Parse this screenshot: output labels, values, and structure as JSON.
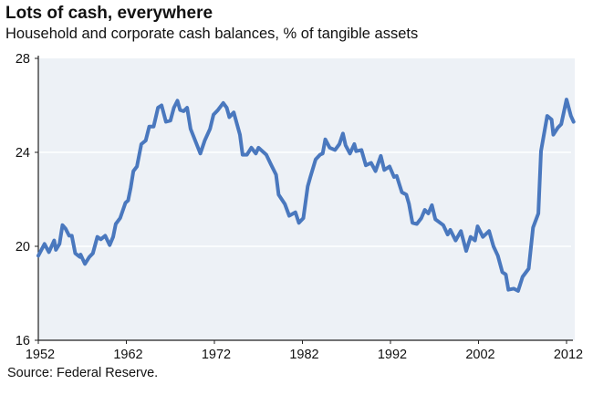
{
  "chart_data": {
    "type": "line",
    "title": "Lots of cash, everywhere",
    "subtitle": "Household and corporate cash balances, % of tangible assets",
    "source": "Source: Federal Reserve.",
    "xlabel": "",
    "ylabel": "",
    "xlim": [
      1952,
      2012.8
    ],
    "ylim": [
      16,
      28
    ],
    "x_ticks": [
      "1952",
      "1962",
      "1972",
      "1982",
      "1992",
      "2002",
      "2012"
    ],
    "y_ticks": [
      "16",
      "20",
      "24",
      "28"
    ],
    "grid": "horizontal",
    "line_color": "#4A78BE",
    "plot_bg": "#EDF1F6",
    "series": [
      {
        "name": "Cash balances",
        "x": [
          1952.0,
          1952.7,
          1953.2,
          1953.8,
          1954.0,
          1954.4,
          1954.75,
          1955.1,
          1955.5,
          1955.8,
          1956.2,
          1956.7,
          1956.8,
          1957.3,
          1957.8,
          1958.2,
          1958.7,
          1959.1,
          1959.6,
          1960.1,
          1960.5,
          1960.8,
          1961.3,
          1961.9,
          1962.2,
          1962.5,
          1962.8,
          1963.2,
          1963.7,
          1964.2,
          1964.6,
          1965.1,
          1965.6,
          1966.0,
          1966.5,
          1967.0,
          1967.4,
          1967.8,
          1968.1,
          1968.5,
          1968.9,
          1969.3,
          1970.4,
          1970.9,
          1971.5,
          1971.9,
          1972.4,
          1973.0,
          1973.4,
          1973.7,
          1974.2,
          1974.9,
          1975.2,
          1975.7,
          1976.2,
          1976.7,
          1977.0,
          1977.9,
          1978.4,
          1979.0,
          1979.3,
          1980.0,
          1980.5,
          1981.2,
          1981.6,
          1982.1,
          1982.6,
          1982.9,
          1983.5,
          1984.0,
          1984.3,
          1984.6,
          1985.1,
          1985.7,
          1986.2,
          1986.6,
          1986.9,
          1987.4,
          1987.9,
          1988.1,
          1988.7,
          1989.2,
          1989.8,
          1990.3,
          1990.9,
          1991.3,
          1991.9,
          1992.4,
          1992.7,
          1993.3,
          1993.8,
          1994.1,
          1994.5,
          1995.0,
          1995.5,
          1995.9,
          1996.3,
          1996.7,
          1997.1,
          1998.0,
          1998.5,
          1998.8,
          1999.4,
          2000.0,
          2000.6,
          2001.1,
          2001.6,
          2001.9,
          2002.5,
          2003.2,
          2003.7,
          2004.2,
          2004.7,
          2005.1,
          2005.4,
          2006.0,
          2006.5,
          2007.0,
          2007.7,
          2008.2,
          2008.8,
          2009.1,
          2009.8,
          2010.3,
          2010.5,
          2011.0,
          2011.4,
          2012.0,
          2012.5,
          2012.8
        ],
        "values": [
          19.6,
          20.1,
          19.75,
          20.25,
          19.85,
          20.1,
          20.9,
          20.75,
          20.45,
          20.45,
          19.7,
          19.55,
          19.65,
          19.25,
          19.55,
          19.7,
          20.4,
          20.3,
          20.45,
          20.05,
          20.4,
          20.95,
          21.2,
          21.85,
          21.95,
          22.5,
          23.2,
          23.4,
          24.35,
          24.5,
          25.1,
          25.1,
          25.9,
          26.0,
          25.3,
          25.35,
          25.9,
          26.2,
          25.8,
          25.75,
          25.9,
          25.0,
          23.95,
          24.5,
          25.0,
          25.6,
          25.8,
          26.1,
          25.9,
          25.5,
          25.7,
          24.75,
          23.9,
          23.9,
          24.2,
          23.95,
          24.2,
          23.9,
          23.5,
          23.05,
          22.2,
          21.8,
          21.3,
          21.45,
          21.0,
          21.2,
          22.55,
          22.95,
          23.7,
          23.9,
          23.95,
          24.55,
          24.2,
          24.1,
          24.35,
          24.8,
          24.3,
          23.95,
          24.35,
          24.05,
          24.1,
          23.45,
          23.55,
          23.2,
          23.85,
          23.25,
          23.4,
          22.95,
          23.0,
          22.3,
          22.2,
          21.8,
          21.0,
          20.95,
          21.2,
          21.55,
          21.4,
          21.75,
          21.15,
          20.9,
          20.5,
          20.7,
          20.25,
          20.65,
          19.8,
          20.4,
          20.25,
          20.85,
          20.4,
          20.65,
          20.0,
          19.6,
          18.9,
          18.8,
          18.15,
          18.2,
          18.1,
          18.7,
          19.05,
          20.8,
          21.4,
          24.05,
          25.55,
          25.4,
          24.75,
          25.05,
          25.2,
          26.25,
          25.55,
          25.3
        ]
      }
    ]
  }
}
